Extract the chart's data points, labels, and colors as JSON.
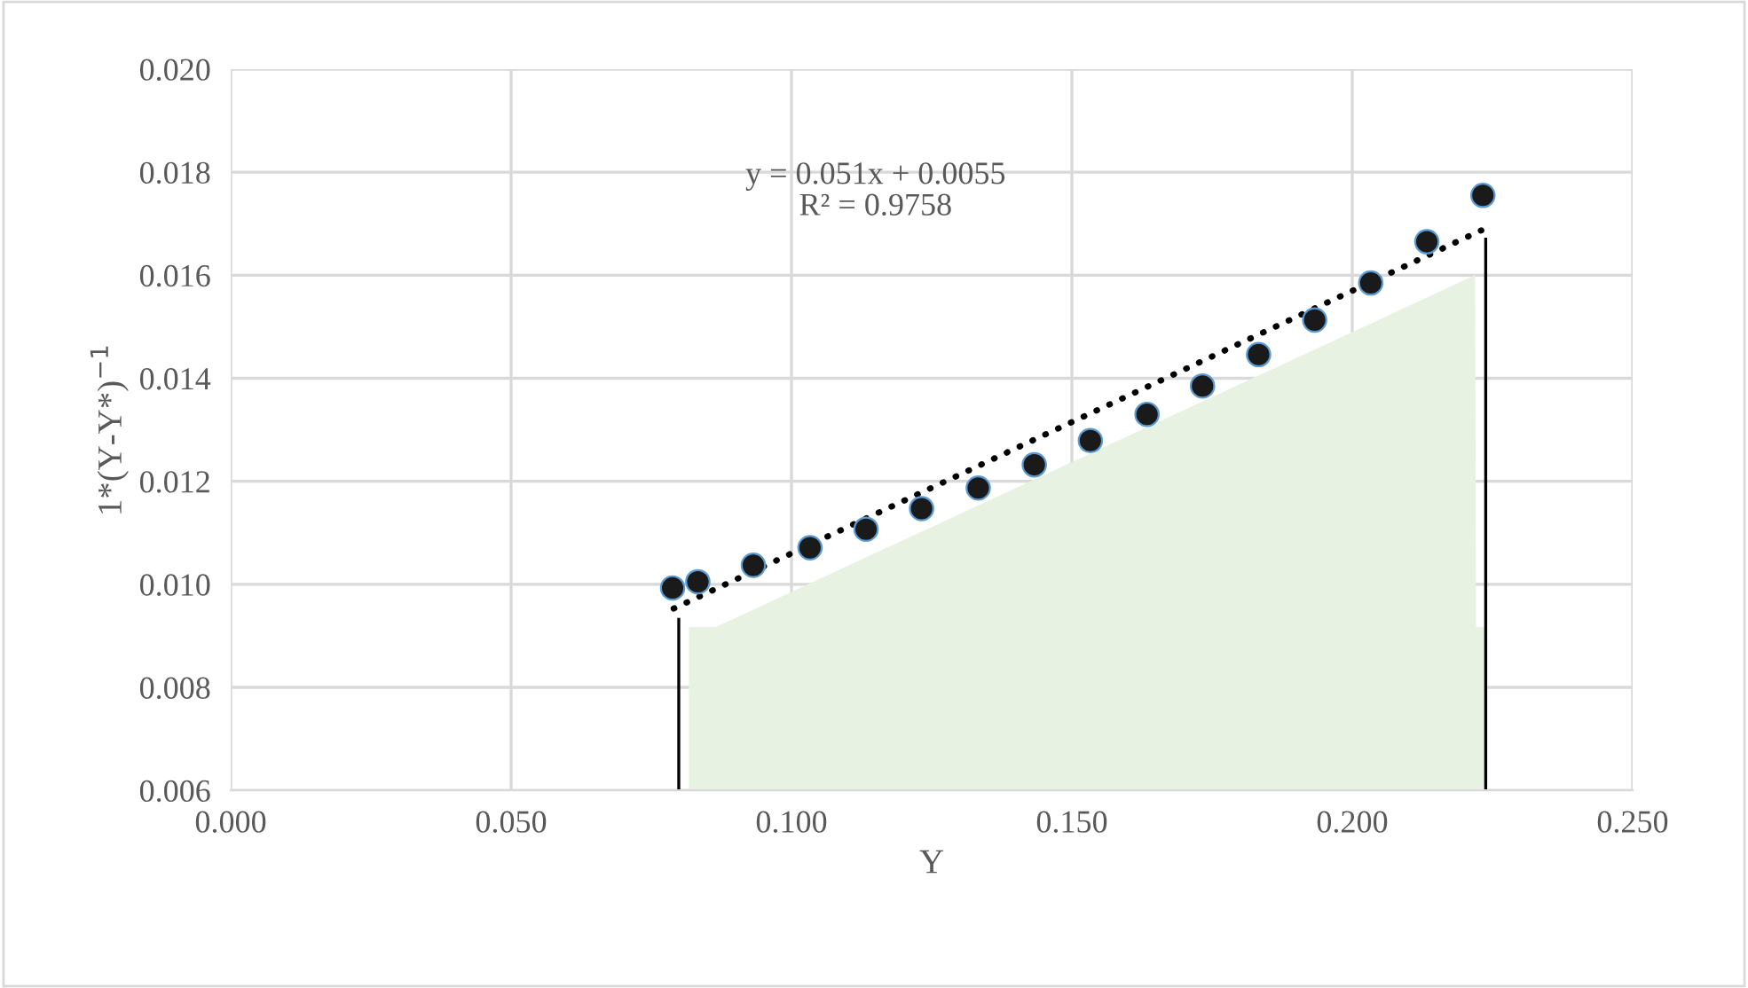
{
  "chart_data": {
    "type": "scatter",
    "xlabel": "Y",
    "ylabel": "1*(Y-Y*)$^{−1}$",
    "xlim": [
      0.0,
      0.25
    ],
    "xticks": [
      {
        "value": 0,
        "label": "0.000"
      },
      {
        "value": 0.05,
        "label": "0.050"
      },
      {
        "value": 0.1,
        "label": "0.100"
      },
      {
        "value": 0.15,
        "label": "0.150"
      },
      {
        "value": 0.2,
        "label": "0.200"
      },
      {
        "value": 0.25,
        "label": "0.250"
      }
    ],
    "ylim": [
      0.006,
      0.02
    ],
    "yticks": [
      {
        "value": 0.006,
        "label": "0.006"
      },
      {
        "value": 0.008,
        "label": "0.008"
      },
      {
        "value": 0.01,
        "label": "0.010"
      },
      {
        "value": 0.012,
        "label": "0.012"
      },
      {
        "value": 0.014,
        "label": "0.014"
      },
      {
        "value": 0.016,
        "label": "0.016"
      },
      {
        "value": 0.018,
        "label": "0.018"
      },
      {
        "value": 0.02,
        "label": "0.020"
      }
    ],
    "grid": true,
    "legend": false,
    "annotations": [
      "y = 0.051x + 0.0055\nR² = 0.9758"
    ],
    "series": [
      {
        "type": "area",
        "color": "#e8f2e2",
        "x": [
          0.0817,
          0.0865,
          0.2219,
          0.2221,
          0.2239
        ],
        "values": [
          0.00917,
          0.00917,
          0.016,
          0.00917,
          0.00917
        ]
      },
      {
        "type": "line",
        "color": "#000000",
        "line_style": "solid",
        "x": [
          0.0799,
          0.0799
        ],
        "values": [
          0.006,
          0.00932
        ]
      },
      {
        "type": "line",
        "color": "#000000",
        "line_style": "solid",
        "x": [
          0.2238,
          0.2238
        ],
        "values": [
          0.006,
          0.0167
        ]
      },
      {
        "type": "line",
        "color": "#000000",
        "line_style": "dotted",
        "x": [
          0.079,
          0.223
        ],
        "values": [
          0.00953,
          0.01687
        ]
      },
      {
        "color": "#1a1a1a",
        "marker": "circle",
        "x": [
          0.0788,
          0.0833,
          0.0932,
          0.1033,
          0.1133,
          0.1232,
          0.1333,
          0.1433,
          0.1533,
          0.1634,
          0.1733,
          0.1833,
          0.1933,
          0.2033,
          0.2133,
          0.2233
        ],
        "values": [
          0.00993,
          0.01005,
          0.01037,
          0.01071,
          0.01107,
          0.01147,
          0.01187,
          0.01232,
          0.01279,
          0.0133,
          0.01385,
          0.01446,
          0.01513,
          0.01585,
          0.01665,
          0.01755
        ]
      }
    ]
  }
}
